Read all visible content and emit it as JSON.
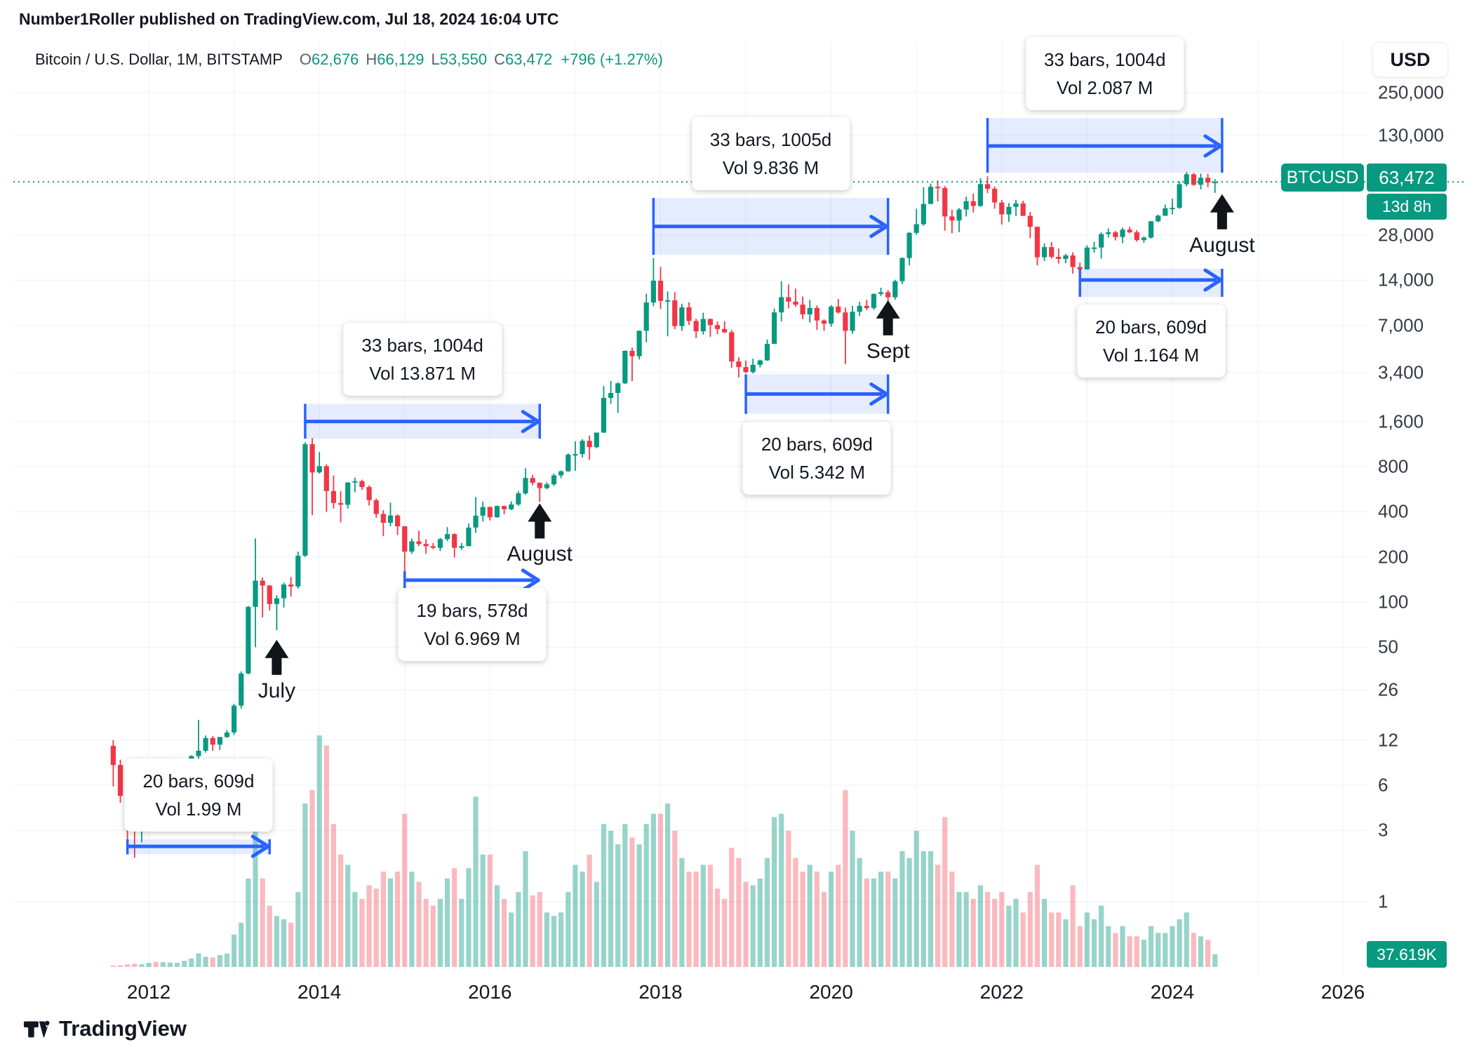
{
  "header": {
    "text": "Number1Roller published on TradingView.com, Jul 18, 2024 16:04 UTC"
  },
  "toolbar": {
    "currency_button": "USD"
  },
  "legend": {
    "title": "Bitcoin / U.S. Dollar, 1M, BITSTAMP",
    "ohlc": [
      {
        "k": "O",
        "v": "62,676"
      },
      {
        "k": "H",
        "v": "66,129"
      },
      {
        "k": "L",
        "v": "53,550"
      },
      {
        "k": "C",
        "v": "63,472"
      }
    ],
    "change": "+796 (+1.27%)"
  },
  "price_badge": {
    "symbol": "BTCUSD",
    "price": "63,472",
    "age": "13d 8h"
  },
  "volume_badge": {
    "value": "37.619K"
  },
  "footer": {
    "brand": "TradingView"
  },
  "colors": {
    "up": "#089981",
    "down": "#f23645",
    "accent_blue": "#2962ff",
    "badge_green": "#089981"
  },
  "chart_data": {
    "type": "candlestick",
    "title": "Bitcoin / U.S. Dollar, 1M, BITSTAMP",
    "scale": "log",
    "start_month": "2011-08",
    "current_price": 63472,
    "y_axis_ticks": [
      {
        "label": "250,000",
        "value": 250000
      },
      {
        "label": "130,000",
        "value": 130000
      },
      {
        "label": "28,000",
        "value": 28000
      },
      {
        "label": "14,000",
        "value": 14000
      },
      {
        "label": "7,000",
        "value": 7000
      },
      {
        "label": "3,400",
        "value": 3400
      },
      {
        "label": "1,600",
        "value": 1600
      },
      {
        "label": "800",
        "value": 800
      },
      {
        "label": "400",
        "value": 400
      },
      {
        "label": "200",
        "value": 200
      },
      {
        "label": "100",
        "value": 100
      },
      {
        "label": "50",
        "value": 50
      },
      {
        "label": "26",
        "value": 26
      },
      {
        "label": "12",
        "value": 12
      },
      {
        "label": "6",
        "value": 6
      },
      {
        "label": "3",
        "value": 3
      },
      {
        "label": "1",
        "value": 1
      }
    ],
    "x_axis_ticks": [
      {
        "label": "2012",
        "month": "2012-01"
      },
      {
        "label": "2014",
        "month": "2014-01"
      },
      {
        "label": "2016",
        "month": "2016-01"
      },
      {
        "label": "2018",
        "month": "2018-01"
      },
      {
        "label": "2020",
        "month": "2020-01"
      },
      {
        "label": "2022",
        "month": "2022-01"
      },
      {
        "label": "2024",
        "month": "2024-01"
      },
      {
        "label": "2026",
        "month": "2026-01"
      }
    ],
    "candles": [
      [
        11,
        12,
        5.9,
        8.2,
        3
      ],
      [
        8.2,
        8.9,
        4.6,
        5.1,
        5
      ],
      [
        5.1,
        5.2,
        2.1,
        3.2,
        8
      ],
      [
        3.2,
        3.6,
        1.97,
        3,
        10
      ],
      [
        3,
        4.9,
        2.5,
        4.7,
        8
      ],
      [
        4.7,
        7.4,
        4.3,
        5.5,
        12
      ],
      [
        5.5,
        6.2,
        3.8,
        4.9,
        15
      ],
      [
        4.9,
        5.5,
        4.5,
        4.9,
        14
      ],
      [
        4.9,
        5.6,
        4.6,
        5.1,
        13
      ],
      [
        5.1,
        5.3,
        4.8,
        5.2,
        12
      ],
      [
        5.2,
        7,
        5.1,
        6.7,
        18
      ],
      [
        6.7,
        9.5,
        6.2,
        9.4,
        25
      ],
      [
        9.4,
        16.4,
        7.5,
        10.2,
        40
      ],
      [
        10.2,
        12.9,
        9.9,
        12.4,
        30
      ],
      [
        12.4,
        12.8,
        10.2,
        11.2,
        28
      ],
      [
        11.2,
        12.6,
        10.3,
        12.6,
        35
      ],
      [
        12.6,
        14,
        12.4,
        13.5,
        40
      ],
      [
        13.5,
        21,
        13,
        20.4,
        95
      ],
      [
        20.4,
        34.5,
        19.5,
        33.4,
        130
      ],
      [
        33.4,
        94,
        33,
        93,
        260
      ],
      [
        93,
        266,
        50,
        139,
        420
      ],
      [
        139,
        146,
        79,
        129,
        260
      ],
      [
        129,
        130,
        88,
        97,
        180
      ],
      [
        97,
        111,
        65,
        106,
        150
      ],
      [
        106,
        135,
        92,
        131,
        140
      ],
      [
        131,
        147,
        109,
        127,
        130
      ],
      [
        127,
        217,
        123,
        204,
        220
      ],
      [
        204,
        1163,
        200,
        1130,
        480
      ],
      [
        1130,
        1240,
        380,
        732,
        520
      ],
      [
        732,
        1000,
        720,
        806,
        680
      ],
      [
        806,
        830,
        400,
        550,
        650
      ],
      [
        550,
        700,
        420,
        458,
        420
      ],
      [
        458,
        550,
        340,
        446,
        330
      ],
      [
        446,
        630,
        420,
        627,
        300
      ],
      [
        627,
        675,
        540,
        640,
        220
      ],
      [
        640,
        655,
        560,
        585,
        200
      ],
      [
        585,
        600,
        440,
        478,
        240
      ],
      [
        478,
        490,
        365,
        387,
        230
      ],
      [
        387,
        410,
        275,
        338,
        280
      ],
      [
        338,
        460,
        320,
        378,
        260
      ],
      [
        378,
        384,
        280,
        320,
        280
      ],
      [
        320,
        322,
        152,
        217,
        450
      ],
      [
        217,
        265,
        210,
        254,
        280
      ],
      [
        254,
        300,
        236,
        244,
        250
      ],
      [
        244,
        262,
        210,
        236,
        200
      ],
      [
        236,
        248,
        225,
        230,
        180
      ],
      [
        230,
        268,
        219,
        263,
        200
      ],
      [
        263,
        316,
        255,
        284,
        260
      ],
      [
        284,
        288,
        198,
        230,
        290
      ],
      [
        230,
        248,
        223,
        236,
        200
      ],
      [
        236,
        334,
        235,
        314,
        290
      ],
      [
        314,
        502,
        290,
        377,
        500
      ],
      [
        377,
        467,
        345,
        430,
        330
      ],
      [
        430,
        435,
        350,
        368,
        330
      ],
      [
        368,
        440,
        365,
        437,
        240
      ],
      [
        437,
        440,
        385,
        416,
        200
      ],
      [
        416,
        470,
        410,
        448,
        160
      ],
      [
        448,
        550,
        438,
        531,
        220
      ],
      [
        531,
        780,
        520,
        672,
        340
      ],
      [
        672,
        705,
        600,
        624,
        210
      ],
      [
        624,
        630,
        465,
        575,
        220
      ],
      [
        575,
        630,
        565,
        610,
        160
      ],
      [
        610,
        720,
        595,
        700,
        150
      ],
      [
        700,
        755,
        670,
        745,
        160
      ],
      [
        745,
        982,
        740,
        963,
        220
      ],
      [
        963,
        1180,
        750,
        970,
        300
      ],
      [
        970,
        1220,
        920,
        1190,
        280
      ],
      [
        1190,
        1290,
        890,
        1080,
        330
      ],
      [
        1080,
        1340,
        1060,
        1350,
        250
      ],
      [
        1350,
        2760,
        1340,
        2300,
        420
      ],
      [
        2300,
        2980,
        2100,
        2480,
        400
      ],
      [
        2480,
        2920,
        1830,
        2875,
        360
      ],
      [
        2875,
        4765,
        2850,
        4735,
        420
      ],
      [
        4735,
        4980,
        2980,
        4360,
        380
      ],
      [
        4360,
        6470,
        4150,
        6440,
        360
      ],
      [
        6440,
        11400,
        5400,
        9950,
        420
      ],
      [
        9950,
        19666,
        9380,
        13900,
        450
      ],
      [
        13900,
        17200,
        9000,
        10200,
        450
      ],
      [
        10200,
        11780,
        5920,
        10300,
        480
      ],
      [
        10300,
        11660,
        6600,
        6930,
        400
      ],
      [
        6930,
        9760,
        6430,
        9240,
        320
      ],
      [
        9240,
        9990,
        7040,
        7490,
        280
      ],
      [
        7490,
        7750,
        5770,
        6390,
        280
      ],
      [
        6390,
        8500,
        6070,
        7730,
        300
      ],
      [
        7730,
        7770,
        5860,
        7030,
        300
      ],
      [
        7030,
        7420,
        6120,
        6620,
        230
      ],
      [
        6620,
        7450,
        6200,
        6300,
        200
      ],
      [
        6300,
        6540,
        3650,
        4020,
        350
      ],
      [
        4020,
        4300,
        3150,
        3690,
        320
      ],
      [
        3690,
        4080,
        3350,
        3420,
        250
      ],
      [
        3420,
        4200,
        3350,
        3820,
        240
      ],
      [
        3820,
        4140,
        3670,
        4090,
        260
      ],
      [
        4090,
        5640,
        4060,
        5270,
        320
      ],
      [
        5270,
        9070,
        5270,
        8550,
        440
      ],
      [
        8550,
        13800,
        7450,
        10800,
        450
      ],
      [
        10800,
        13130,
        9080,
        10080,
        400
      ],
      [
        10080,
        12320,
        9320,
        9630,
        320
      ],
      [
        9630,
        10900,
        7700,
        8290,
        280
      ],
      [
        8290,
        10350,
        7300,
        9150,
        300
      ],
      [
        9150,
        9500,
        6520,
        7550,
        280
      ],
      [
        7550,
        7690,
        6430,
        7190,
        220
      ],
      [
        7190,
        9570,
        6850,
        9350,
        280
      ],
      [
        9350,
        10500,
        8400,
        8540,
        300
      ],
      [
        8540,
        9200,
        3850,
        6440,
        520
      ],
      [
        6440,
        9460,
        6150,
        8630,
        400
      ],
      [
        8630,
        10070,
        8100,
        9450,
        320
      ],
      [
        9450,
        10380,
        8850,
        9140,
        260
      ],
      [
        9140,
        11440,
        8900,
        11350,
        260
      ],
      [
        11350,
        12490,
        11000,
        11650,
        280
      ],
      [
        11650,
        12050,
        9825,
        10780,
        280
      ],
      [
        10780,
        14100,
        10380,
        13800,
        260
      ],
      [
        13800,
        19860,
        13200,
        19700,
        340
      ],
      [
        19700,
        29300,
        17600,
        29000,
        320
      ],
      [
        29000,
        42000,
        28130,
        33100,
        400
      ],
      [
        33100,
        58350,
        32300,
        45200,
        340
      ],
      [
        45200,
        61800,
        45000,
        58800,
        340
      ],
      [
        58800,
        64900,
        46930,
        57700,
        300
      ],
      [
        57700,
        59500,
        30000,
        37330,
        440
      ],
      [
        37330,
        41300,
        28800,
        35040,
        280
      ],
      [
        35040,
        42400,
        29300,
        41460,
        220
      ],
      [
        41460,
        50500,
        37300,
        47100,
        220
      ],
      [
        47100,
        52900,
        39600,
        43800,
        200
      ],
      [
        43800,
        67000,
        43280,
        61300,
        240
      ],
      [
        61300,
        69000,
        53300,
        57000,
        220
      ],
      [
        57000,
        59100,
        42000,
        46200,
        200
      ],
      [
        46200,
        47950,
        32950,
        38480,
        220
      ],
      [
        38480,
        45800,
        34300,
        43190,
        180
      ],
      [
        43190,
        48200,
        37550,
        45530,
        200
      ],
      [
        45530,
        47450,
        37600,
        37640,
        160
      ],
      [
        37640,
        40000,
        26700,
        31790,
        220
      ],
      [
        31790,
        31950,
        17600,
        19925,
        300
      ],
      [
        19925,
        24650,
        18800,
        23290,
        200
      ],
      [
        23290,
        25200,
        19550,
        20050,
        160
      ],
      [
        20050,
        22800,
        18100,
        19420,
        160
      ],
      [
        19420,
        21000,
        18200,
        20490,
        140
      ],
      [
        20490,
        21480,
        15480,
        17160,
        240
      ],
      [
        17160,
        18380,
        16260,
        16540,
        120
      ],
      [
        16540,
        23950,
        16490,
        23130,
        160
      ],
      [
        23130,
        25250,
        21400,
        23140,
        140
      ],
      [
        23140,
        29180,
        19550,
        28470,
        180
      ],
      [
        28470,
        31050,
        27000,
        29230,
        120
      ],
      [
        29230,
        29850,
        25800,
        27210,
        100
      ],
      [
        27210,
        31400,
        24750,
        30470,
        120
      ],
      [
        30470,
        31800,
        28850,
        29230,
        90
      ],
      [
        29230,
        30200,
        25350,
        25940,
        90
      ],
      [
        25940,
        27480,
        24900,
        26970,
        80
      ],
      [
        26970,
        34700,
        26540,
        34640,
        120
      ],
      [
        34640,
        38410,
        34100,
        37710,
        100
      ],
      [
        37710,
        44700,
        37600,
        42280,
        100
      ],
      [
        42280,
        48970,
        38500,
        42580,
        120
      ],
      [
        42580,
        63900,
        41900,
        61200,
        140
      ],
      [
        61200,
        73800,
        59000,
        71300,
        160
      ],
      [
        71300,
        72800,
        59600,
        60640,
        100
      ],
      [
        60640,
        71950,
        56550,
        67540,
        90
      ],
      [
        67540,
        71900,
        58400,
        62680,
        80
      ],
      [
        62676,
        66129,
        53550,
        63472,
        37.619
      ]
    ],
    "measurements": [
      {
        "start": "2011-10",
        "end": "2013-06",
        "arrow_price": 2.35,
        "band_prices": [
          2.62,
          2.08
        ],
        "label_side": "above",
        "lines": [
          "20 bars, 609d",
          "Vol 1.99 M"
        ]
      },
      {
        "start": "2013-11",
        "end": "2016-08",
        "arrow_price": 1600,
        "band_prices": [
          2100,
          1230
        ],
        "label_side": "above",
        "lines": [
          "33 bars, 1004d",
          "Vol 13.871 M"
        ]
      },
      {
        "start": "2015-01",
        "end": "2016-08",
        "arrow_price": 140,
        "band_prices": null,
        "label_side": "below",
        "lines": [
          "19 bars, 578d",
          "Vol 6.969 M"
        ]
      },
      {
        "start": "2017-12",
        "end": "2020-09",
        "arrow_price": 32000,
        "band_prices": [
          49500,
          20700
        ],
        "label_side": "above",
        "lines": [
          "33 bars, 1005d",
          "Vol 9.836 M"
        ]
      },
      {
        "start": "2019-01",
        "end": "2020-09",
        "arrow_price": 2440,
        "band_prices": [
          3300,
          1800
        ],
        "label_side": "below",
        "lines": [
          "20 bars, 609d",
          "Vol 5.342 M"
        ]
      },
      {
        "start": "2021-11",
        "end": "2024-08",
        "arrow_price": 110000,
        "band_prices": [
          169000,
          73000
        ],
        "label_side": "above",
        "lines": [
          "33 bars, 1004d",
          "Vol 2.087 M"
        ]
      },
      {
        "start": "2022-12",
        "end": "2024-08",
        "arrow_price": 14050,
        "band_prices": [
          16700,
          10850
        ],
        "label_side": "below",
        "lines": [
          "20 bars, 609d",
          "Vol 1.164 M"
        ]
      }
    ],
    "event_arrows": [
      {
        "month": "2013-07",
        "tip_price": 56,
        "label": "July"
      },
      {
        "month": "2016-08",
        "tip_price": 455,
        "label": "August"
      },
      {
        "month": "2020-09",
        "tip_price": 10300,
        "label": "Sept"
      },
      {
        "month": "2024-08",
        "tip_price": 52500,
        "label": "August"
      }
    ]
  }
}
